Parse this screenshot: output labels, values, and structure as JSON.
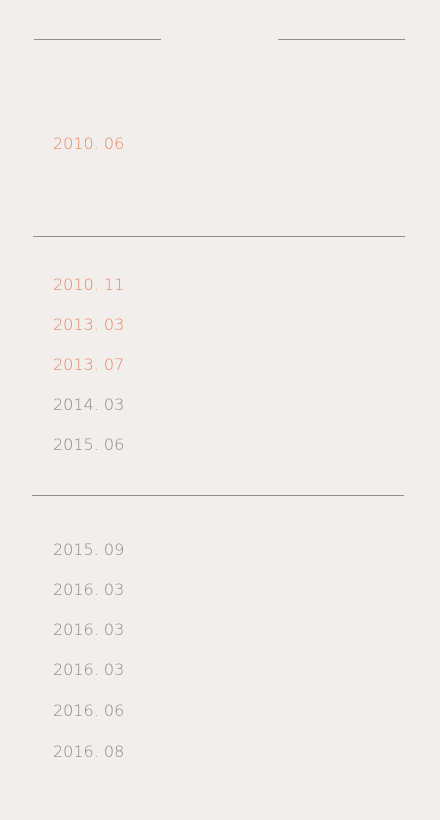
{
  "theme": {
    "background": "#f2eeeb",
    "accent": "#e08a67",
    "muted": "#8a8a8a",
    "rule": "#8f8f8f"
  },
  "timeline": {
    "group1": {
      "dates": [
        "2010. 06"
      ]
    },
    "group2": {
      "dates": [
        "2010. 11",
        "2013. 03",
        "2013. 07",
        "2014. 03",
        "2015. 06"
      ]
    },
    "group3": {
      "dates": [
        "2015. 09",
        "2016. 03",
        "2016. 03",
        "2016. 03",
        "2016. 06",
        "2016. 08"
      ]
    }
  }
}
